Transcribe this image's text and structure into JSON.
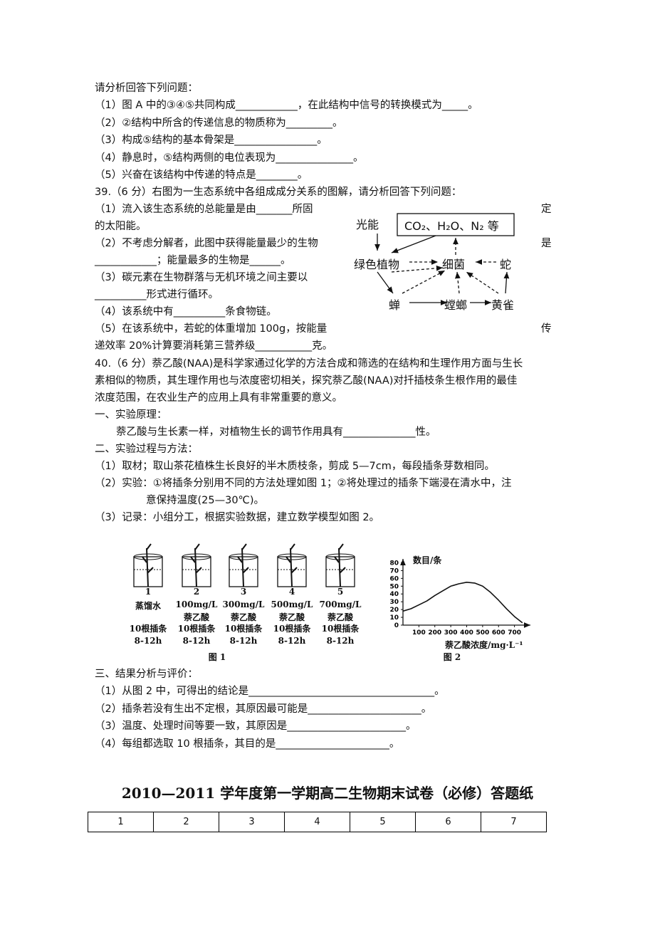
{
  "q38": {
    "intro": "请分析回答下列问题：",
    "items": [
      "（1）图 A 中的③④⑤共同构成____________，在此结构中信号的转换模式为_____。",
      "（2）②结构中所含的传递信息的物质称为_________。",
      "（3）构成⑤结构的基本骨架是________________。",
      "（4）静息时，⑤结构两侧的电位表现为_______________。",
      "（5）兴奋在该结构中传递的特点是________。"
    ]
  },
  "q39": {
    "heading": "39.（6 分）右图为一生态系统中各组成成分关系的图解，请分析回答下列问题：",
    "lines": [
      "（1）流入该生态系统的总能量是由_______所固",
      "的太阳能。",
      "（2）不考虑分解者，此图中获得能量最少的生物",
      "____________；能量最多的生物是______。",
      "（3）碳元素在生物群落与无机环境之间主要以",
      "__________形式进行循环。",
      "（4）该系统中有__________条食物链。",
      "（5）在该系统中，若蛇的体重增加 100g，按能量",
      "递效率 20%计算要消耗第三营养级___________克。"
    ],
    "side": [
      "定",
      "是",
      "传"
    ]
  },
  "diagram": {
    "light": "光能",
    "box": "CO₂、H₂O、N₂ 等",
    "nodes": [
      "绿色植物",
      "细菌",
      "蛇",
      "蝉",
      "螳螂",
      "黄雀"
    ]
  },
  "q40": {
    "lines": [
      "40.（6 分）萘乙酸(NAA)是科学家通过化学的方法合成和筛选的在结构和生理作用方面与生长",
      "素相似的物质，其生理作用也与浓度密切相关，探究萘乙酸(NAA)对扦插枝条生根作用的最佳",
      "浓度范围，在农业生产的应用上具有非常重要的意义。",
      "一、实验原理：",
      "萘乙酸与生长素一样，对植物生长的调节作用具有______________性。",
      "二、实验过程与方法：",
      "（1）取材；取山茶花植株生长良好的半木质枝条，剪成 5—7cm，每段插条芽数相同。",
      "（2）实验：①将插条分别用不同的方法处理如图 1；②将处理过的插条下端浸在清水中，注",
      "意保持温度(25—30℃)。",
      "（3）记录：小组分工，根据实验数据，建立数学模型如图 2。"
    ]
  },
  "figure1": {
    "caption": "图 1",
    "beakers": [
      {
        "number": "1",
        "lines": [
          "蒸馏水"
        ],
        "count": "10根插条",
        "time": "8-12h"
      },
      {
        "number": "2",
        "lines": [
          "100mg/L",
          "萘乙酸"
        ],
        "count": "10根插条",
        "time": "8-12h"
      },
      {
        "number": "3",
        "lines": [
          "300mg/L",
          "萘乙酸"
        ],
        "count": "10根插条",
        "time": "8-12h"
      },
      {
        "number": "4",
        "lines": [
          "500mg/L",
          "萘乙酸"
        ],
        "count": "10根插条",
        "time": "8-12h"
      },
      {
        "number": "5",
        "lines": [
          "700mg/L",
          "萘乙酸"
        ],
        "count": "10根插条",
        "time": "8-12h"
      }
    ]
  },
  "figure2": {
    "type": "line",
    "caption": "图 2",
    "ylabel": "数目/条",
    "xlabel": "萘乙酸浓度/mg·L⁻¹",
    "x": [
      0,
      50,
      100,
      150,
      200,
      250,
      300,
      350,
      400,
      450,
      500,
      550,
      600,
      650,
      700,
      750
    ],
    "values": [
      18,
      21,
      26,
      31,
      38,
      44,
      50,
      53,
      55,
      54,
      50,
      42,
      32,
      21,
      11,
      3
    ],
    "xlim": [
      0,
      800
    ],
    "ylim": [
      0,
      85
    ],
    "xticks": [
      100,
      200,
      300,
      400,
      500,
      600,
      700
    ],
    "yticks": [
      0,
      10,
      20,
      30,
      40,
      50,
      60,
      70,
      80
    ]
  },
  "results": {
    "heading": "三、结果分析与评价：",
    "items": [
      "（1）从图 2 中，可得出的结论是____________________________________。",
      "（2）插条若没有生出不定根，其原因最可能是______________________。",
      "（3）温度、处理时间等要一致，其原因是_______________________。",
      "（4）每组都选取 10 根插条，其目的是______________________。"
    ]
  },
  "answer_sheet": {
    "title": "2010—2011 学年度第一学期高二生物期末试卷（必修）答题纸",
    "header": [
      "1",
      "2",
      "3",
      "4",
      "5",
      "6",
      "7"
    ]
  }
}
